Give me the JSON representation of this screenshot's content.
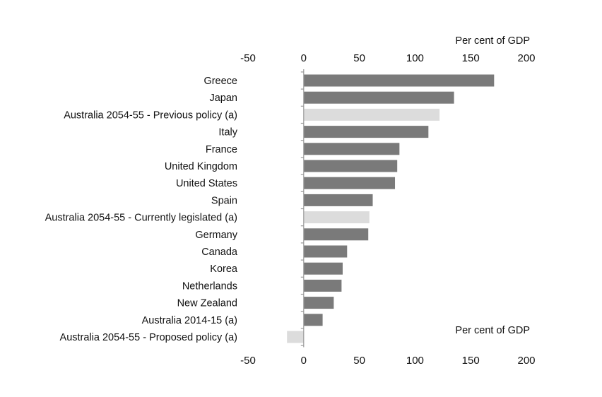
{
  "chart_data": {
    "type": "bar",
    "orientation": "horizontal",
    "unit_label_top": "Per cent of GDP",
    "unit_label_bottom": "Per cent of GDP",
    "xlim": [
      -50,
      200
    ],
    "xticks": [
      -50,
      0,
      50,
      100,
      150,
      200
    ],
    "xtick_labels": [
      "-50",
      "0",
      "50",
      "100",
      "150",
      "200"
    ],
    "grid": false,
    "colors": {
      "dark": "#7a7a7a",
      "light": "#dcdcdc"
    },
    "categories": [
      "Greece",
      "Japan",
      "Australia 2054-55 - Previous policy (a)",
      "Italy",
      "France",
      "United Kingdom",
      "United States",
      "Spain",
      "Australia 2054-55 - Currently legislated (a)",
      "Germany",
      "Canada",
      "Korea",
      "Netherlands",
      "New Zealand",
      "Australia 2014-15 (a)",
      "Australia 2054-55 - Proposed policy (a)"
    ],
    "values": [
      171,
      135,
      122,
      112,
      86,
      84,
      82,
      62,
      59,
      58,
      39,
      35,
      34,
      27,
      17,
      -15
    ],
    "highlight": [
      false,
      false,
      true,
      false,
      false,
      false,
      false,
      false,
      true,
      false,
      false,
      false,
      false,
      false,
      false,
      true
    ]
  }
}
